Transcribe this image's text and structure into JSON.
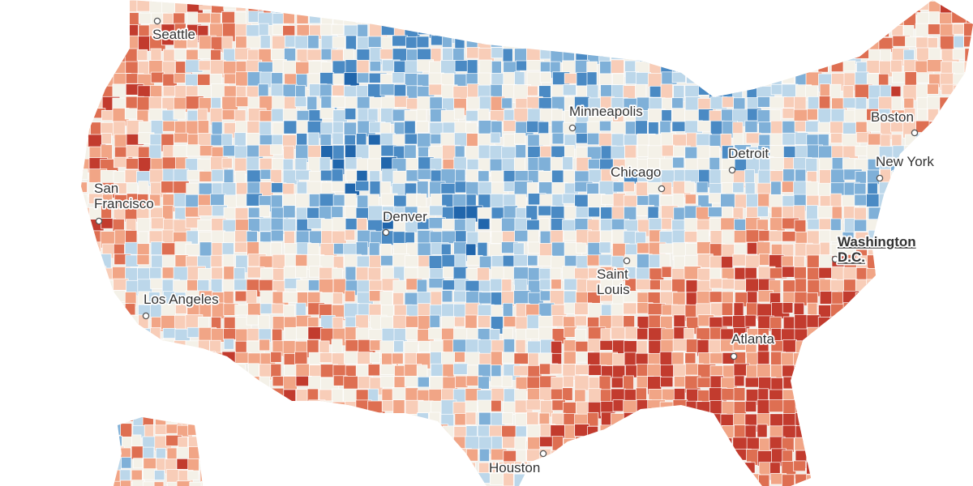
{
  "map": {
    "palette": {
      "blue_dark": "#2166ac",
      "blue": "#4a8ac4",
      "blue_mid": "#7fb0d8",
      "blue_light": "#bcd7ea",
      "neutral": "#f4f1e8",
      "red_light": "#f8cdb8",
      "red_mid": "#f1a586",
      "red": "#de6f52",
      "red_dark": "#c23b2e"
    },
    "cities": [
      {
        "id": "seattle",
        "label": "Seattle"
      },
      {
        "id": "san-francisco",
        "label": "San Francisco",
        "lines": [
          "San",
          "Francisco"
        ]
      },
      {
        "id": "los-angeles",
        "label": "Los Angeles"
      },
      {
        "id": "denver",
        "label": "Denver"
      },
      {
        "id": "minneapolis",
        "label": "Minneapolis"
      },
      {
        "id": "chicago",
        "label": "Chicago"
      },
      {
        "id": "detroit",
        "label": "Detroit"
      },
      {
        "id": "saint-louis",
        "label": "Saint Louis",
        "lines": [
          "Saint",
          "Louis"
        ]
      },
      {
        "id": "atlanta",
        "label": "Atlanta"
      },
      {
        "id": "houston",
        "label": "Houston"
      },
      {
        "id": "boston",
        "label": "Boston"
      },
      {
        "id": "new-york",
        "label": "New York"
      },
      {
        "id": "washington-dc",
        "label": "Washington D.C.",
        "lines": [
          "Washington",
          "D.C."
        ],
        "capital": true
      }
    ]
  }
}
